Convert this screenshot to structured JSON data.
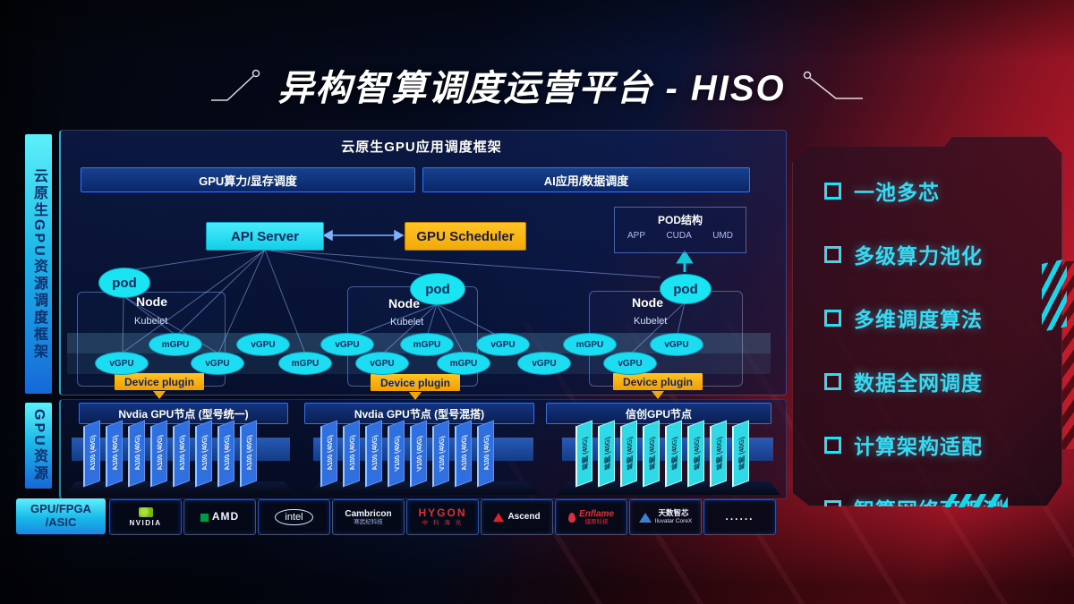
{
  "slide": {
    "title": "异构智算调度运营平台 - HISO"
  },
  "sidebar": {
    "scheduling_frame": "云原生GPU资源调度框架",
    "gpu_resources": "GPU资源",
    "chip_types_line1": "GPU/FPGA",
    "chip_types_line2": "/ASIC"
  },
  "app_frame": {
    "title": "云原生GPU应用调度框架",
    "left_bar": "GPU算力/显存调度",
    "right_bar": "AI应用/数据调度"
  },
  "control_plane": {
    "api_server": "API Server",
    "gpu_scheduler": "GPU Scheduler"
  },
  "pod_structure": {
    "title": "POD结构",
    "layers": [
      "APP",
      "CUDA",
      "UMD"
    ]
  },
  "nodes": {
    "node_label": "Node",
    "kubelet_label": "Kubelet",
    "pod_label": "pod",
    "device_plugin_label": "Device plugin"
  },
  "gpu_ellipses": {
    "upper": [
      "mGPU",
      "vGPU",
      "vGPU",
      "mGPU",
      "vGPU",
      "mGPU",
      "vGPU"
    ],
    "lower": [
      "vGPU",
      "vGPU",
      "mGPU",
      "vGPU",
      "mGPU",
      "vGPU",
      "vGPU"
    ]
  },
  "gpu_groups": [
    {
      "label": "Nvdia GPU节点 (型号统一)",
      "cards": [
        "A100 (40G)",
        "A100 (40G)",
        "A100 (40G)",
        "A100 (40G)",
        "A100 (40G)",
        "A100 (40G)",
        "A100 (40G)",
        "A100 (40G)"
      ]
    },
    {
      "label": "Nvdia GPU节点 (型号混搭)",
      "cards": [
        "A100 (40G)",
        "A100 (40G)",
        "A100 (40G)",
        "V100 (40G)",
        "V100 (40G)",
        "V100 (40G)",
        "A100 (40G)",
        "A100 (40G)"
      ]
    },
    {
      "label": "信创GPU节点",
      "cards": [
        "昇腾 (40G)",
        "昇腾 (40G)",
        "昇腾 (40G)",
        "昇腾 (40G)",
        "昇腾 (40G)",
        "昇腾 (40G)",
        "昇腾 (40G)",
        "昇腾 (40G)"
      ]
    }
  ],
  "vendors": [
    {
      "name": "NVIDIA"
    },
    {
      "name": "AMD"
    },
    {
      "name": "intel"
    },
    {
      "name": "Cambricon",
      "sub": "寒武纪科技"
    },
    {
      "name": "HYGON",
      "sub": "中 科 海 光"
    },
    {
      "name": "Ascend"
    },
    {
      "name": "Enflame",
      "sub": "燧原科技"
    },
    {
      "name": "天数智芯",
      "sub": "Iluvatar CoreX"
    },
    {
      "name": "......"
    }
  ],
  "features": [
    "一池多芯",
    "多级算力池化",
    "多维调度算法",
    "数据全网调度",
    "计算架构适配",
    "智算网络可观测"
  ],
  "colors": {
    "cyan": "#1ee3f5",
    "gold": "#f3a90a",
    "panel_blue": "#0d1e54",
    "red": "#b5182b",
    "feature_cyan": "#38d9f2"
  }
}
